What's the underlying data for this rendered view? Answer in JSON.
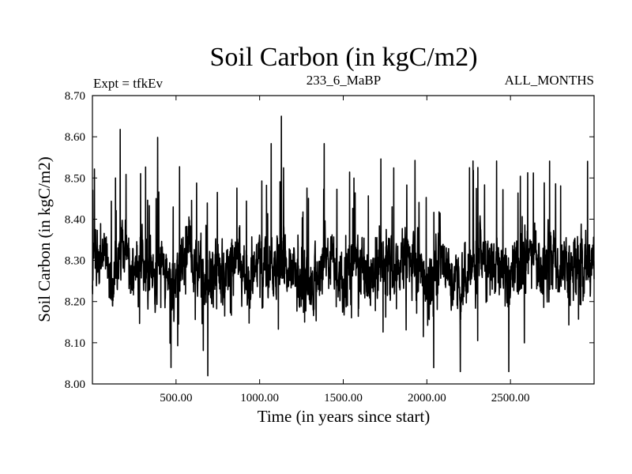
{
  "chart_data": {
    "type": "line",
    "title": "Soil Carbon (in kgC/m2)",
    "subtitle_left": "Expt = tfkEv",
    "subtitle_center": "233_6_MaBP",
    "subtitle_right": "ALL_MONTHS",
    "xlabel": "Time (in years since start)",
    "ylabel": "Soil Carbon (in kgC/m2)",
    "xlim": [
      0,
      3000
    ],
    "ylim": [
      8.0,
      8.7
    ],
    "x_ticks": [
      500,
      1000,
      1500,
      2000,
      2500
    ],
    "x_tick_labels": [
      "500.00",
      "1000.00",
      "1500.00",
      "2000.00",
      "2500.00"
    ],
    "y_ticks": [
      8.0,
      8.1,
      8.2,
      8.3,
      8.4,
      8.5,
      8.6,
      8.7
    ],
    "y_tick_labels": [
      "8.00",
      "8.10",
      "8.20",
      "8.30",
      "8.40",
      "8.50",
      "8.60",
      "8.70"
    ],
    "grid": false,
    "line_color": "#000000",
    "series": [
      {
        "x": [
          0,
          60,
          120,
          180,
          240,
          300,
          360,
          420,
          470,
          520,
          580,
          640,
          690,
          750,
          810,
          870,
          930,
          990,
          1050,
          1120,
          1180,
          1240,
          1300,
          1360,
          1420,
          1480,
          1540,
          1600,
          1660,
          1720,
          1780,
          1840,
          1900,
          1960,
          2020,
          2080,
          2140,
          2200,
          2260,
          2320,
          2380,
          2440,
          2500,
          2560,
          2620,
          2680,
          2740,
          2800,
          2860,
          2920,
          3000
        ],
        "y": [
          8.29,
          8.33,
          8.25,
          8.31,
          8.27,
          8.3,
          8.26,
          8.32,
          8.24,
          8.29,
          8.33,
          8.27,
          8.22,
          8.3,
          8.28,
          8.31,
          8.26,
          8.29,
          8.27,
          8.32,
          8.28,
          8.26,
          8.23,
          8.27,
          8.3,
          8.25,
          8.29,
          8.28,
          8.26,
          8.3,
          8.27,
          8.29,
          8.31,
          8.27,
          8.25,
          8.29,
          8.26,
          8.23,
          8.27,
          8.3,
          8.28,
          8.29,
          8.26,
          8.3,
          8.32,
          8.29,
          8.31,
          8.28,
          8.29,
          8.3,
          8.29
        ]
      }
    ],
    "annotated_extrema": [
      {
        "x": 470,
        "y": 8.04
      },
      {
        "x": 690,
        "y": 8.02
      },
      {
        "x": 1130,
        "y": 8.65
      },
      {
        "x": 2200,
        "y": 8.03
      },
      {
        "x": 2490,
        "y": 8.03
      }
    ]
  }
}
